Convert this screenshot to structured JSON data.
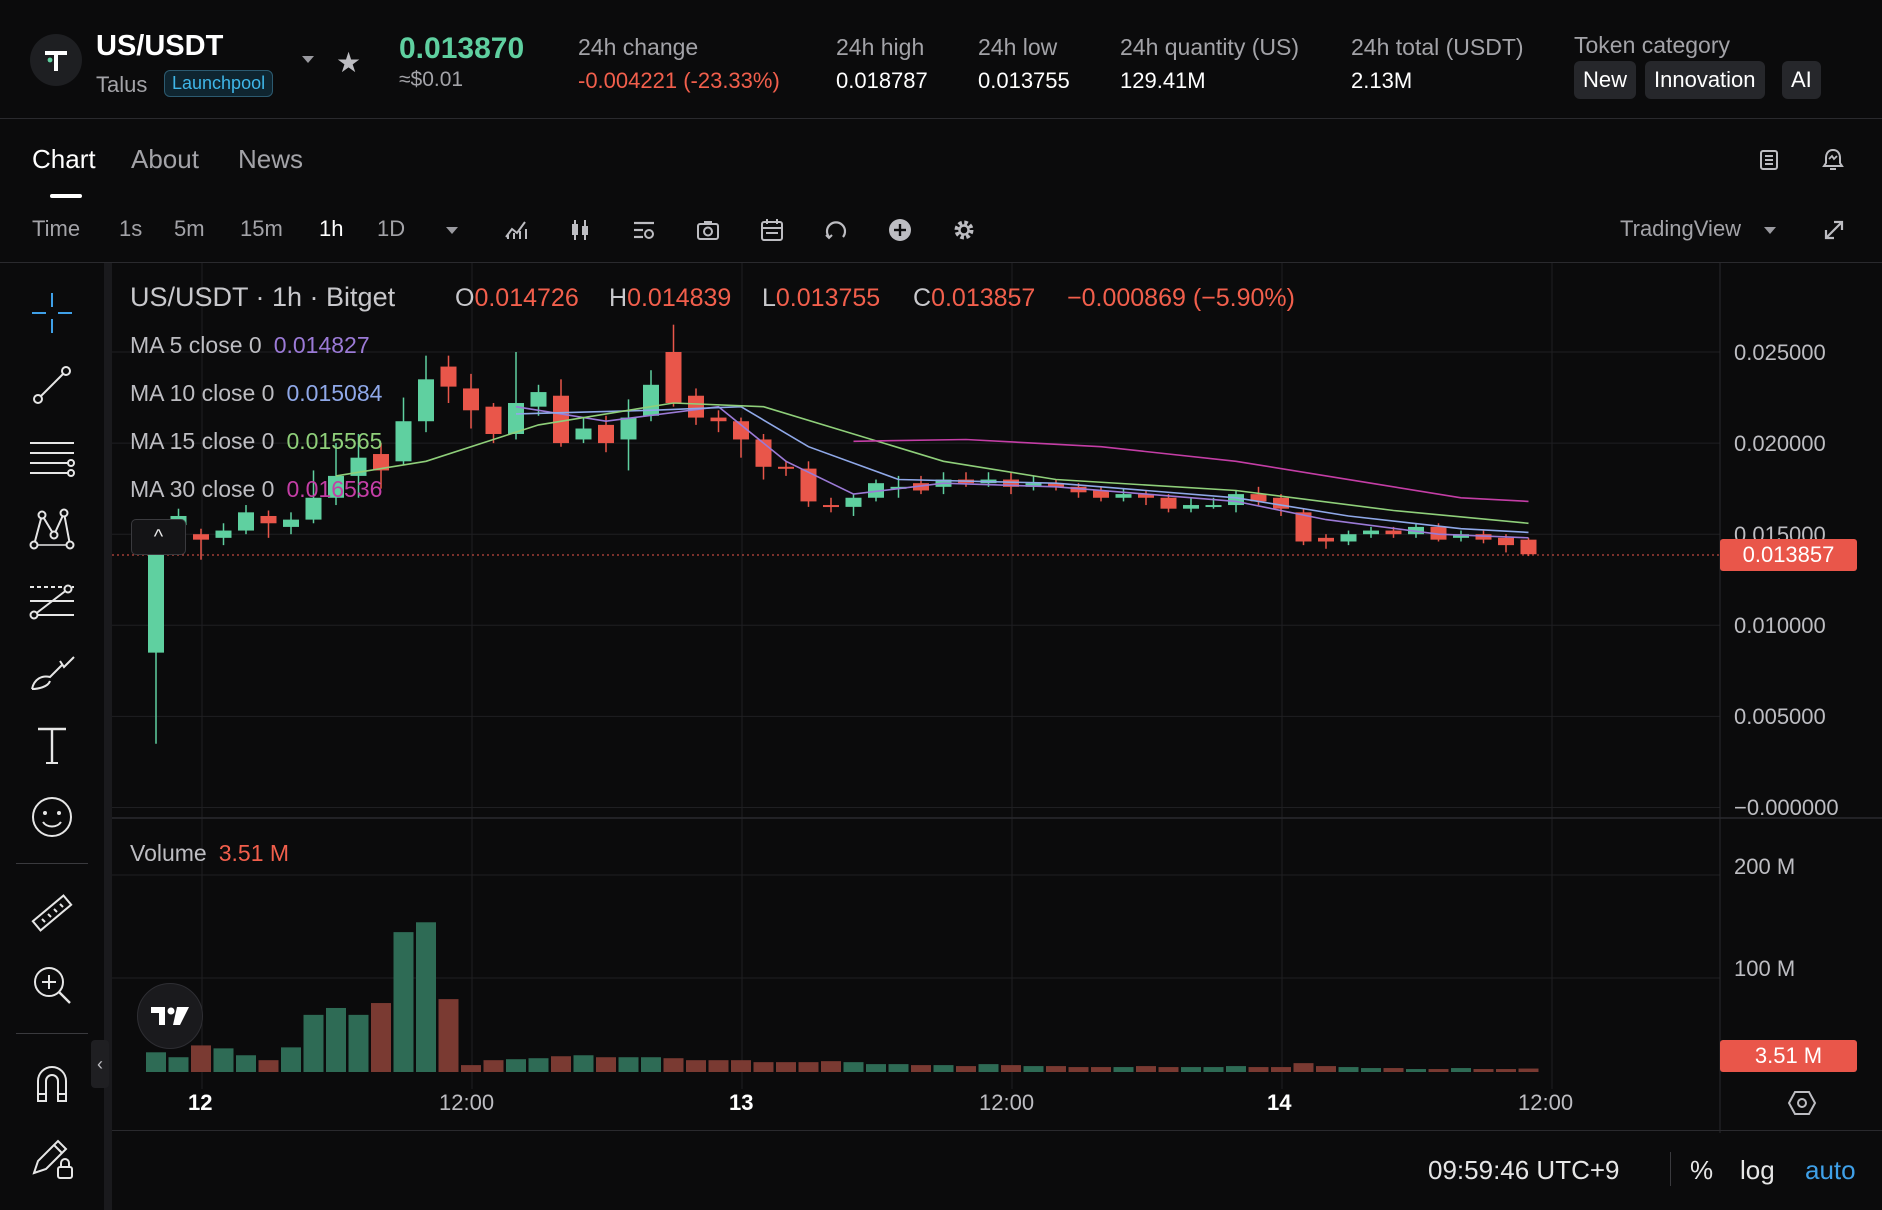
{
  "header": {
    "pair": "US/USDT",
    "project": "Talus",
    "badge": "Launchpool",
    "price": "0.013870",
    "price_fiat": "≈$0.01",
    "stats": [
      {
        "label": "24h change",
        "value": "-0.004221 (-23.33%)",
        "color": "#f25f4c"
      },
      {
        "label": "24h high",
        "value": "0.018787",
        "color": "#ffffff"
      },
      {
        "label": "24h low",
        "value": "0.013755",
        "color": "#ffffff"
      },
      {
        "label": "24h quantity (US)",
        "value": "129.41M",
        "color": "#ffffff"
      },
      {
        "label": "24h total (USDT)",
        "value": "2.13M",
        "color": "#ffffff"
      }
    ],
    "token_category_label": "Token category",
    "tags": [
      "New",
      "Innovation",
      "AI"
    ]
  },
  "tabs": [
    "Chart",
    "About",
    "News"
  ],
  "toolbar": {
    "time_label": "Time",
    "intervals": [
      "1s",
      "5m",
      "15m",
      "1h",
      "1D"
    ],
    "active_interval": "1h",
    "provider": "TradingView"
  },
  "chart": {
    "title": "US/USDT · 1h · Bitget",
    "ohlc": {
      "o_key": "O",
      "o": "0.014726",
      "h_key": "H",
      "h": "0.014839",
      "l_key": "L",
      "l": "0.013755",
      "c_key": "C",
      "c": "0.013857",
      "change": "−0.000869 (−5.90%)"
    },
    "ma": [
      {
        "label": "MA 5 close 0",
        "value": "0.014827",
        "color": "#9b7ad6"
      },
      {
        "label": "MA 10 close 0",
        "value": "0.015084",
        "color": "#8fa8e8"
      },
      {
        "label": "MA 15 close 0",
        "value": "0.015565",
        "color": "#8fcf7a"
      },
      {
        "label": "MA 30 close 0",
        "value": "0.016536",
        "color": "#c43ea6"
      }
    ],
    "price_axis": [
      "0.025000",
      "0.020000",
      "0.015000",
      "0.010000",
      "0.005000",
      "−0.000000"
    ],
    "current_price": "0.013857",
    "volume_label": "Volume",
    "volume_value": "3.51 M",
    "volume_axis": [
      "200 M",
      "100 M"
    ],
    "volume_tag": "3.51 M",
    "time_axis": [
      {
        "label": "12",
        "bold": true
      },
      {
        "label": "12:00",
        "bold": false
      },
      {
        "label": "13",
        "bold": true
      },
      {
        "label": "12:00",
        "bold": false
      },
      {
        "label": "14",
        "bold": true
      },
      {
        "label": "12:00",
        "bold": false
      }
    ],
    "clock": "09:59:46 UTC+9",
    "scale_buttons": [
      "%",
      "log",
      "auto"
    ],
    "colors": {
      "up": "#5fd0a0",
      "down": "#e9564a",
      "up_vol": "#2e6b55",
      "down_vol": "#7a3a32"
    }
  },
  "chart_data": {
    "type": "candlestick",
    "candles": [
      [
        0.0085,
        0.0148,
        0.0035,
        0.0152
      ],
      [
        0.0155,
        0.016,
        0.0143,
        0.0164
      ],
      [
        0.015,
        0.0147,
        0.0136,
        0.0153
      ],
      [
        0.0148,
        0.0152,
        0.0144,
        0.0156
      ],
      [
        0.0152,
        0.0162,
        0.015,
        0.0166
      ],
      [
        0.016,
        0.0156,
        0.0148,
        0.0163
      ],
      [
        0.0154,
        0.0158,
        0.015,
        0.0162
      ],
      [
        0.0158,
        0.017,
        0.0156,
        0.0185
      ],
      [
        0.017,
        0.0182,
        0.0166,
        0.02
      ],
      [
        0.0182,
        0.0192,
        0.017,
        0.0205
      ],
      [
        0.0194,
        0.0185,
        0.0175,
        0.02
      ],
      [
        0.019,
        0.0212,
        0.0188,
        0.0225
      ],
      [
        0.0212,
        0.0235,
        0.0206,
        0.0248
      ],
      [
        0.0242,
        0.0231,
        0.0222,
        0.0248
      ],
      [
        0.023,
        0.0218,
        0.0208,
        0.0238
      ],
      [
        0.022,
        0.0205,
        0.02,
        0.0222
      ],
      [
        0.0205,
        0.0222,
        0.0202,
        0.025
      ],
      [
        0.022,
        0.0228,
        0.0215,
        0.0232
      ],
      [
        0.0226,
        0.02,
        0.0198,
        0.0235
      ],
      [
        0.0202,
        0.0208,
        0.02,
        0.0214
      ],
      [
        0.021,
        0.02,
        0.0195,
        0.0215
      ],
      [
        0.0202,
        0.0214,
        0.0185,
        0.0224
      ],
      [
        0.0215,
        0.0232,
        0.0212,
        0.024
      ],
      [
        0.025,
        0.0222,
        0.022,
        0.0265
      ],
      [
        0.0226,
        0.0214,
        0.021,
        0.023
      ],
      [
        0.0214,
        0.0212,
        0.0206,
        0.0218
      ],
      [
        0.0212,
        0.0202,
        0.0192,
        0.0214
      ],
      [
        0.0202,
        0.0187,
        0.018,
        0.0205
      ],
      [
        0.0187,
        0.0186,
        0.0182,
        0.019
      ],
      [
        0.0186,
        0.0168,
        0.0165,
        0.019
      ],
      [
        0.0166,
        0.0165,
        0.0162,
        0.017
      ],
      [
        0.0165,
        0.017,
        0.016,
        0.0172
      ],
      [
        0.017,
        0.0178,
        0.0168,
        0.018
      ],
      [
        0.0176,
        0.0176,
        0.017,
        0.0182
      ],
      [
        0.0178,
        0.0174,
        0.0172,
        0.0182
      ],
      [
        0.0176,
        0.018,
        0.0172,
        0.0184
      ],
      [
        0.018,
        0.0178,
        0.0176,
        0.0184
      ],
      [
        0.0178,
        0.018,
        0.0176,
        0.0184
      ],
      [
        0.018,
        0.0176,
        0.0172,
        0.0184
      ],
      [
        0.0176,
        0.0178,
        0.0174,
        0.0182
      ],
      [
        0.0178,
        0.0176,
        0.0174,
        0.018
      ],
      [
        0.0176,
        0.0173,
        0.017,
        0.0178
      ],
      [
        0.0174,
        0.017,
        0.0168,
        0.0176
      ],
      [
        0.017,
        0.0172,
        0.0168,
        0.0175
      ],
      [
        0.0172,
        0.017,
        0.0166,
        0.0174
      ],
      [
        0.017,
        0.0164,
        0.0162,
        0.0172
      ],
      [
        0.0164,
        0.0166,
        0.0162,
        0.017
      ],
      [
        0.0166,
        0.0166,
        0.0164,
        0.017
      ],
      [
        0.0166,
        0.0172,
        0.0162,
        0.0174
      ],
      [
        0.0172,
        0.0168,
        0.0166,
        0.0176
      ],
      [
        0.017,
        0.0164,
        0.016,
        0.0172
      ],
      [
        0.0162,
        0.0146,
        0.0144,
        0.0164
      ],
      [
        0.0148,
        0.0146,
        0.0142,
        0.015
      ],
      [
        0.0146,
        0.015,
        0.0144,
        0.0152
      ],
      [
        0.015,
        0.0152,
        0.0148,
        0.0154
      ],
      [
        0.0152,
        0.015,
        0.0148,
        0.0154
      ],
      [
        0.015,
        0.0154,
        0.0148,
        0.0156
      ],
      [
        0.0154,
        0.0147,
        0.0146,
        0.0156
      ],
      [
        0.0148,
        0.015,
        0.0146,
        0.0152
      ],
      [
        0.015,
        0.0147,
        0.0145,
        0.0152
      ],
      [
        0.0148,
        0.0144,
        0.014,
        0.015
      ],
      [
        0.0147,
        0.0139,
        0.0138,
        0.0148
      ]
    ],
    "volume": [
      20,
      15,
      27,
      24,
      17,
      12,
      25,
      58,
      65,
      58,
      70,
      142,
      152,
      74,
      7,
      12,
      13,
      14,
      16,
      17,
      15,
      15,
      15,
      14,
      12,
      12,
      12,
      10,
      10,
      10,
      11,
      10,
      8,
      8,
      7,
      7,
      6,
      8,
      7,
      6,
      6,
      5,
      5,
      5,
      6,
      5,
      5,
      5,
      6,
      5,
      5,
      9,
      6,
      5,
      4,
      4,
      3,
      3,
      4,
      3,
      3,
      3.51
    ],
    "ma_lines": {
      "ma5": [
        [
          16,
          0.022
        ],
        [
          20,
          0.0212
        ],
        [
          25,
          0.022
        ],
        [
          28,
          0.019
        ],
        [
          31,
          0.0172
        ],
        [
          35,
          0.0178
        ],
        [
          40,
          0.0176
        ],
        [
          48,
          0.0168
        ],
        [
          52,
          0.0158
        ],
        [
          57,
          0.015
        ],
        [
          61,
          0.0148
        ]
      ],
      "ma10": [
        [
          16,
          0.0216
        ],
        [
          22,
          0.0218
        ],
        [
          26,
          0.022
        ],
        [
          29,
          0.0198
        ],
        [
          33,
          0.018
        ],
        [
          40,
          0.0178
        ],
        [
          48,
          0.017
        ],
        [
          53,
          0.016
        ],
        [
          58,
          0.0153
        ],
        [
          61,
          0.0151
        ]
      ],
      "ma15": [
        [
          8,
          0.0182
        ],
        [
          12,
          0.019
        ],
        [
          17,
          0.021
        ],
        [
          23,
          0.0222
        ],
        [
          27,
          0.022
        ],
        [
          31,
          0.0205
        ],
        [
          35,
          0.019
        ],
        [
          40,
          0.018
        ],
        [
          48,
          0.0174
        ],
        [
          55,
          0.0163
        ],
        [
          61,
          0.0156
        ]
      ],
      "ma30": [
        [
          31,
          0.0201
        ],
        [
          36,
          0.0202
        ],
        [
          42,
          0.0198
        ],
        [
          48,
          0.019
        ],
        [
          54,
          0.0178
        ],
        [
          58,
          0.017
        ],
        [
          61,
          0.0168
        ]
      ]
    }
  }
}
